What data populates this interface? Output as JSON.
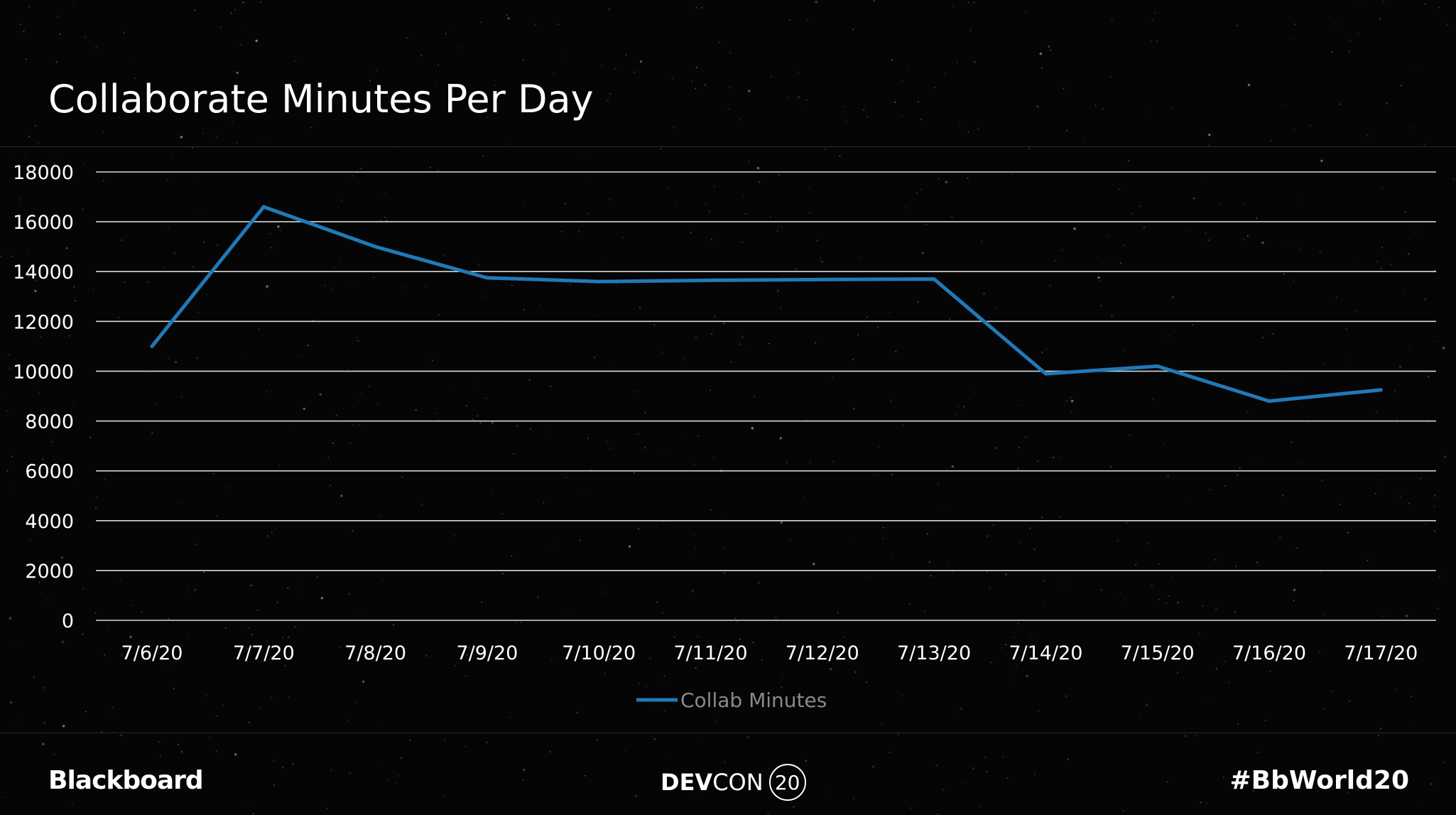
{
  "slide": {
    "title": "Collaborate Minutes Per Day"
  },
  "chart_data": {
    "type": "line",
    "title": "",
    "xlabel": "",
    "ylabel": "",
    "categories": [
      "7/6/20",
      "7/7/20",
      "7/8/20",
      "7/9/20",
      "7/10/20",
      "7/11/20",
      "7/12/20",
      "7/13/20",
      "7/14/20",
      "7/15/20",
      "7/16/20",
      "7/17/20"
    ],
    "series": [
      {
        "name": "Collab Minutes",
        "values": [
          11000,
          16600,
          15000,
          13750,
          13600,
          13650,
          13680,
          13700,
          9900,
          10200,
          8800,
          9250
        ],
        "color": "#1f7ab8"
      }
    ],
    "ylim": [
      0,
      18000
    ],
    "yticks": [
      "0",
      "2000",
      "4000",
      "6000",
      "8000",
      "10000",
      "12000",
      "14000",
      "16000",
      "18000"
    ],
    "grid": true,
    "legend": "bottom"
  },
  "footer": {
    "brand": "Blackboard",
    "event_dev": "DEV",
    "event_con": "CON",
    "event_year": "20",
    "hashtag": "#BbWorld20"
  },
  "colors": {
    "background": "#050505",
    "gridline": "#d8d8d8",
    "line": "#1f7ab8",
    "legend_text": "#8a8a8a"
  }
}
